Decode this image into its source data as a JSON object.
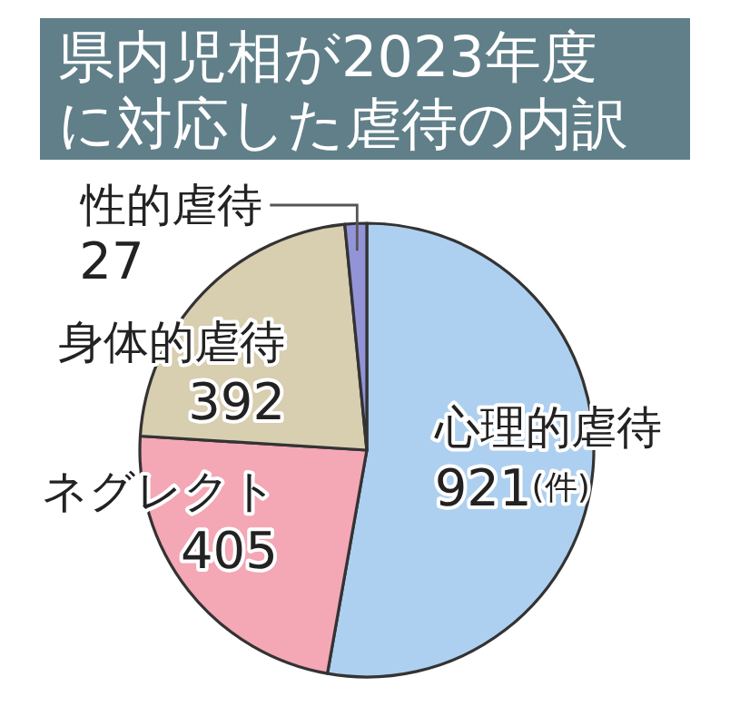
{
  "chart_data": {
    "type": "pie",
    "title": "県内児相が2023年度に対応した虐待の内訳",
    "categories": [
      "心理的虐待",
      "ネグレクト",
      "身体的虐待",
      "性的虐待"
    ],
    "values": [
      921,
      405,
      392,
      27
    ],
    "colors": [
      "#aed0f0",
      "#f4a7b5",
      "#d8ceb0",
      "#9394d8"
    ],
    "value_labels": [
      "921(件)",
      "405",
      "392",
      "27"
    ]
  }
}
